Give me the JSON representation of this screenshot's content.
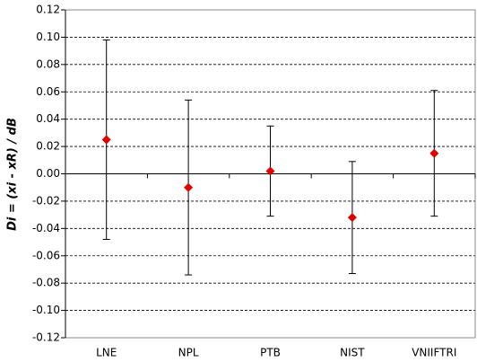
{
  "chart_data": {
    "type": "errorbar",
    "y_label": "Di = (xi - xR) / dB",
    "categories": [
      "LNE",
      "NPL",
      "PTB",
      "NIST",
      "VNIIFTRI"
    ],
    "values": [
      0.025,
      -0.01,
      0.002,
      -0.032,
      0.015
    ],
    "errors": [
      0.073,
      0.064,
      0.033,
      0.041,
      0.046
    ],
    "color": "#e00000",
    "ylim": [
      -0.12,
      0.12
    ],
    "yticks": [
      {
        "value": -0.12,
        "label": "-0.12"
      },
      {
        "value": -0.1,
        "label": "-0.10"
      },
      -0.08,
      -0.06,
      -0.04,
      -0.02,
      {
        "value": 0,
        "label": "0.00"
      },
      0.02,
      0.04,
      0.06,
      0.08,
      {
        "value": 0.1,
        "label": "0.10"
      },
      0.12
    ],
    "grid": true
  }
}
